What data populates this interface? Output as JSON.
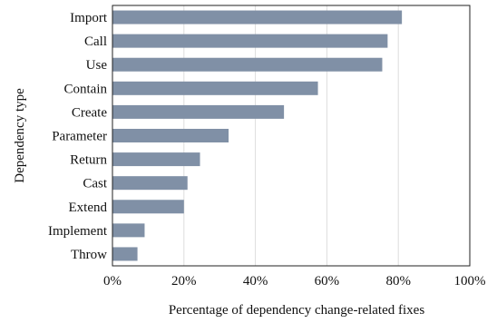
{
  "chart_data": {
    "type": "bar",
    "orientation": "horizontal",
    "title": "",
    "xlabel": "Percentage of dependency change-related fixes",
    "ylabel": "Dependency type",
    "categories": [
      "Import",
      "Call",
      "Use",
      "Contain",
      "Create",
      "Parameter",
      "Return",
      "Cast",
      "Extend",
      "Implement",
      "Throw"
    ],
    "values": [
      81,
      77,
      75.5,
      57.5,
      48,
      32.5,
      24.5,
      21,
      20,
      9,
      7
    ],
    "xlim": [
      0,
      100
    ],
    "xticks": [
      "0%",
      "20%",
      "40%",
      "60%",
      "80%",
      "100%"
    ],
    "grid": "vertical",
    "legend": "none",
    "bar_color": "#8090a6"
  }
}
